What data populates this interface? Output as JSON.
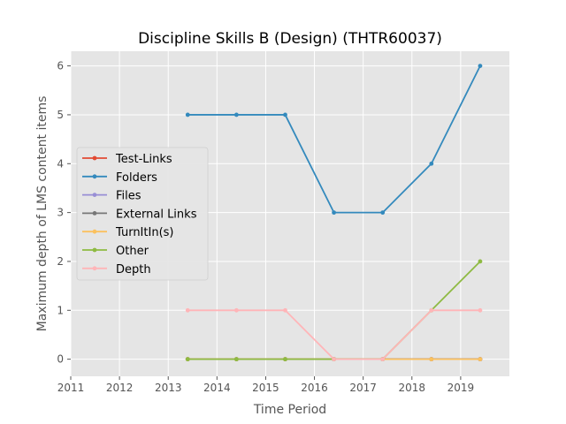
{
  "chart_data": {
    "type": "line",
    "title": "Discipline Skills B (Design) (THTR60037)",
    "xlabel": "Time Period",
    "ylabel": "Maximum depth of LMS content items",
    "xlim": [
      2011,
      2020
    ],
    "ylim": [
      -0.35,
      6.3
    ],
    "xticks": [
      "2011",
      "2012",
      "2013",
      "2014",
      "2015",
      "2016",
      "2017",
      "2018",
      "2019"
    ],
    "yticks": [
      "0",
      "1",
      "2",
      "3",
      "4",
      "5",
      "6"
    ],
    "grid": true,
    "legend_position": "center-left",
    "x": [
      2013.4,
      2014.4,
      2015.4,
      2016.4,
      2017.4,
      2018.4,
      2019.4
    ],
    "series": [
      {
        "name": "Test-Links",
        "color": "#E24A33",
        "values": [
          0,
          0,
          0,
          0,
          0,
          0,
          0
        ]
      },
      {
        "name": "Folders",
        "color": "#348ABD",
        "values": [
          5,
          5,
          5,
          3,
          3,
          4,
          6
        ]
      },
      {
        "name": "Files",
        "color": "#988ED5",
        "values": [
          0,
          0,
          0,
          0,
          0,
          0,
          0
        ]
      },
      {
        "name": "External Links",
        "color": "#777777",
        "values": [
          0,
          0,
          0,
          0,
          0,
          0,
          0
        ]
      },
      {
        "name": "TurnItIn(s)",
        "color": "#FBC15E",
        "values": [
          0,
          0,
          0,
          0,
          0,
          0,
          0
        ]
      },
      {
        "name": "Other",
        "color": "#8EBA42",
        "values": [
          0,
          0,
          0,
          0,
          0,
          1,
          2
        ]
      },
      {
        "name": "Depth",
        "color": "#FFB5B8",
        "values": [
          1,
          1,
          1,
          0,
          0,
          1,
          1
        ]
      }
    ]
  }
}
